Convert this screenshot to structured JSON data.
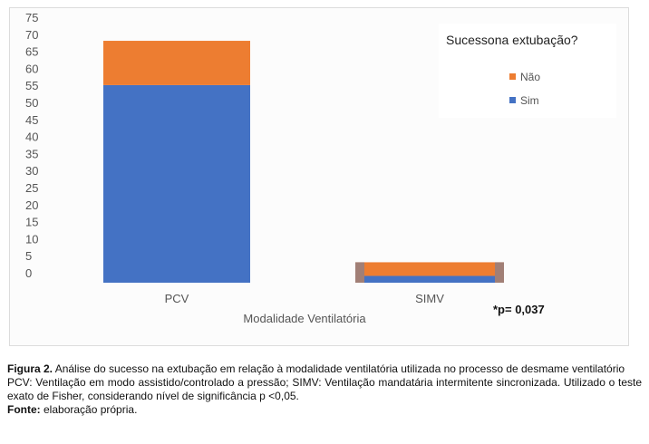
{
  "chart_data": {
    "type": "bar",
    "stacked": true,
    "categories": [
      "PCV",
      "SIMV"
    ],
    "series": [
      {
        "name": "Sim",
        "values": [
          58,
          2
        ],
        "color": "#4472c4"
      },
      {
        "name": "Não",
        "values": [
          13,
          4
        ],
        "color": "#ed7d31"
      }
    ],
    "xlabel": "Modalidade Ventilatória",
    "ylabel": "",
    "ylim": [
      0,
      75
    ],
    "yticks": [
      0,
      5,
      10,
      15,
      20,
      25,
      30,
      35,
      40,
      45,
      50,
      55,
      60,
      65,
      70,
      75
    ],
    "legend_title": "Sucessona extubação?",
    "legend_position": "top-right",
    "annotation": "*p= 0,037",
    "grid": false
  },
  "caption": {
    "figure_label": "Figura 2.",
    "figure_text": "Análise do sucesso na extubação em relação à modalidade ventilatória utilizada no processo de desmame ventilatório",
    "note": "PCV: Ventilação em modo assistido/controlado a pressão; SIMV: Ventilação mandatária intermitente sincronizada. Utilizado o teste exato de Fisher, considerando nível de significância p <0,05.",
    "source_label": "Fonte:",
    "source_text": "elaboração própria."
  }
}
